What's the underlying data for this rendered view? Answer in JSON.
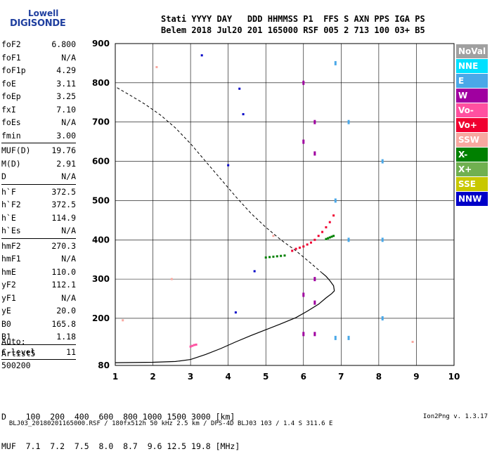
{
  "logo": {
    "line1": "Lowell",
    "line2": "DIGISONDE"
  },
  "header": {
    "line1": "Stati YYYY DAY   DDD HHMMSS P1  FFS S AXN PPS IGA PS",
    "line2": "Belem 2018 Jul20 201 165000 RSF 005 2 713 100 03+ B5"
  },
  "params": [
    {
      "k": "foF2",
      "v": "6.800"
    },
    {
      "k": "foF1",
      "v": "N/A"
    },
    {
      "k": "foF1p",
      "v": "4.29"
    },
    {
      "k": "foE",
      "v": "3.11"
    },
    {
      "k": "foEp",
      "v": "3.25"
    },
    {
      "k": "fxI",
      "v": "7.10"
    },
    {
      "k": "foEs",
      "v": "N/A"
    },
    {
      "k": "fmin",
      "v": "3.00"
    },
    {
      "sep": true
    },
    {
      "k": "MUF(D)",
      "v": "19.76"
    },
    {
      "k": "M(D)",
      "v": "2.91"
    },
    {
      "k": "D",
      "v": "N/A"
    },
    {
      "sep": true
    },
    {
      "k": "h`F",
      "v": "372.5"
    },
    {
      "k": "h`F2",
      "v": "372.5"
    },
    {
      "k": "h`E",
      "v": "114.9"
    },
    {
      "k": "h`Es",
      "v": "N/A"
    },
    {
      "sep": true
    },
    {
      "k": "hmF2",
      "v": "270.3"
    },
    {
      "k": "hmF1",
      "v": "N/A"
    },
    {
      "k": "hmE",
      "v": "110.0"
    },
    {
      "k": "yF2",
      "v": "112.1"
    },
    {
      "k": "yF1",
      "v": "N/A"
    },
    {
      "k": "yE",
      "v": "20.0"
    },
    {
      "k": "B0",
      "v": "165.8"
    },
    {
      "k": "B1",
      "v": "1.18"
    },
    {
      "sep": true
    },
    {
      "k": "C-level",
      "v": "11"
    },
    {
      "sep": true
    }
  ],
  "auto": {
    "label": "Auto:",
    "name": "Artist5",
    "code": "500200"
  },
  "legend": [
    {
      "label": "NoVal",
      "color": "#a0a0a0"
    },
    {
      "label": "NNE",
      "color": "#00e0ff"
    },
    {
      "label": "E",
      "color": "#4aa8e8"
    },
    {
      "label": "W",
      "color": "#a000a0"
    },
    {
      "label": "Vo-",
      "color": "#ff50a0"
    },
    {
      "label": "Vo+",
      "color": "#f00030"
    },
    {
      "label": "SSW",
      "color": "#f8a8a0"
    },
    {
      "label": "X-",
      "color": "#008000"
    },
    {
      "label": "X+",
      "color": "#70b050"
    },
    {
      "label": "SSE",
      "color": "#c8c800"
    },
    {
      "label": "NNW",
      "color": "#0000c8"
    }
  ],
  "bottom": {
    "line1": "D    100  200  400  600  800 1000 1500 3000 [km]",
    "line2": "MUF  7.1  7.2  7.5  8.0  8.7  9.6 12.5 19.8 [MHz]"
  },
  "footer": {
    "left": "BLJ03_20180201165000.RSF / 180fx512h 50 kHz 2.5 km / DPS-4D BLJ03 103 / 1.4 S 311.6 E",
    "right": "Ion2Png v. 1.3.17"
  },
  "chart_data": {
    "type": "scatter",
    "x_ticks": [
      "1",
      "2",
      "3",
      "4",
      "5",
      "6",
      "7",
      "8",
      "9",
      "10"
    ],
    "y_ticks": [
      "80",
      "200",
      "300",
      "400",
      "500",
      "600",
      "700",
      "800",
      "900"
    ],
    "xlim": [
      1,
      10
    ],
    "ylim": [
      80,
      900
    ],
    "grid": true,
    "profile_curve": {
      "x": [
        1.0,
        2.0,
        2.6,
        3.0,
        3.4,
        3.8,
        4.2,
        4.6,
        5.0,
        5.4,
        5.8,
        6.1,
        6.4,
        6.6,
        6.75,
        6.82,
        6.8,
        6.7,
        6.6,
        6.5
      ],
      "y": [
        87,
        88,
        90,
        95,
        108,
        123,
        140,
        156,
        171,
        186,
        202,
        218,
        236,
        252,
        263,
        270,
        283,
        296,
        307,
        315
      ]
    },
    "extrapolated_profile": {
      "x": [
        6.5,
        6.2,
        5.8,
        5.4,
        5.0,
        4.6,
        4.2,
        3.8,
        3.4,
        3.0,
        2.6,
        2.2,
        1.8,
        1.4,
        1.0
      ],
      "y": [
        315,
        340,
        372,
        400,
        432,
        468,
        510,
        555,
        600,
        645,
        685,
        718,
        745,
        768,
        790
      ]
    },
    "traces": [
      {
        "label": "Vo-",
        "x": [
          3.0,
          3.05,
          3.1,
          3.15
        ],
        "y": [
          128,
          130,
          132,
          133
        ]
      },
      {
        "label": "Vo+",
        "x": [
          5.7,
          5.8,
          5.9,
          6.0,
          6.1,
          6.2,
          6.3,
          6.4,
          6.5,
          6.6,
          6.7,
          6.8
        ],
        "y": [
          372,
          377,
          380,
          383,
          388,
          393,
          400,
          410,
          420,
          432,
          445,
          462
        ]
      },
      {
        "label": "X-",
        "x": [
          5.0,
          5.1,
          5.2,
          5.3,
          5.4,
          5.5,
          6.6,
          6.65,
          6.7,
          6.75,
          6.8
        ],
        "y": [
          355,
          356,
          357,
          358,
          359,
          360,
          402,
          404,
          406,
          408,
          410
        ]
      },
      {
        "label": "W",
        "x": [
          6.0,
          6.0,
          6.0,
          6.0,
          6.3,
          6.3,
          6.3,
          6.3,
          6.3
        ],
        "y": [
          160,
          260,
          650,
          800,
          160,
          240,
          300,
          620,
          700
        ]
      },
      {
        "label": "E",
        "x": [
          6.85,
          6.85,
          6.85,
          7.2,
          7.2,
          7.2,
          8.1,
          8.1,
          8.1
        ],
        "y": [
          150,
          500,
          850,
          150,
          400,
          700,
          200,
          400,
          600
        ]
      },
      {
        "label": "NNW",
        "x": [
          3.3,
          4.3,
          4.4,
          4.0,
          4.7,
          4.2
        ],
        "y": [
          870,
          785,
          720,
          590,
          320,
          215
        ]
      },
      {
        "label": "SSW",
        "x": [
          2.1,
          1.2,
          2.5,
          5.2,
          8.9
        ],
        "y": [
          840,
          195,
          300,
          410,
          140
        ]
      }
    ]
  }
}
